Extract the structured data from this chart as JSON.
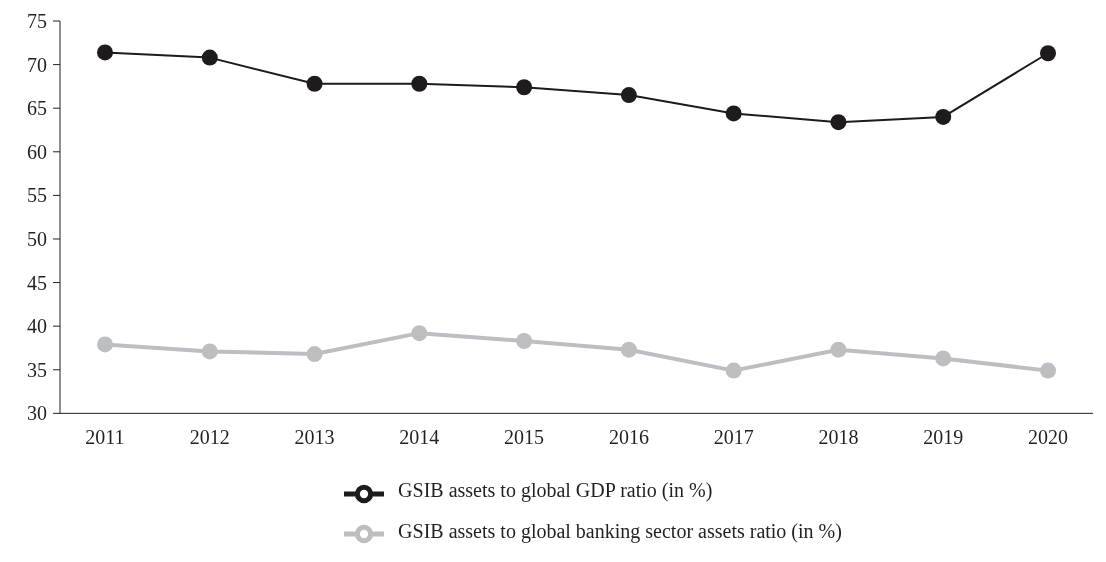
{
  "chart_data": {
    "type": "line",
    "categories": [
      "2011",
      "2012",
      "2013",
      "2014",
      "2015",
      "2016",
      "2017",
      "2018",
      "2019",
      "2020"
    ],
    "series": [
      {
        "name": "GSIB assets to global GDP ratio (in %)",
        "color": "#1f1a1c",
        "values": [
          71.4,
          70.8,
          67.8,
          67.8,
          67.4,
          66.5,
          64.4,
          63.4,
          64.0,
          71.3
        ]
      },
      {
        "name": "GSIB assets to global banking sector assets ratio (in %)",
        "color": "#bdbec2",
        "values": [
          37.9,
          37.1,
          36.8,
          39.2,
          38.3,
          37.3,
          34.9,
          37.3,
          36.3,
          34.9
        ]
      }
    ],
    "ylim": [
      30,
      75
    ],
    "yticks": [
      30,
      35,
      40,
      45,
      50,
      55,
      60,
      65,
      70,
      75
    ],
    "grid": false,
    "legend": "bottom",
    "marker": "circle",
    "line_style": "solid"
  }
}
